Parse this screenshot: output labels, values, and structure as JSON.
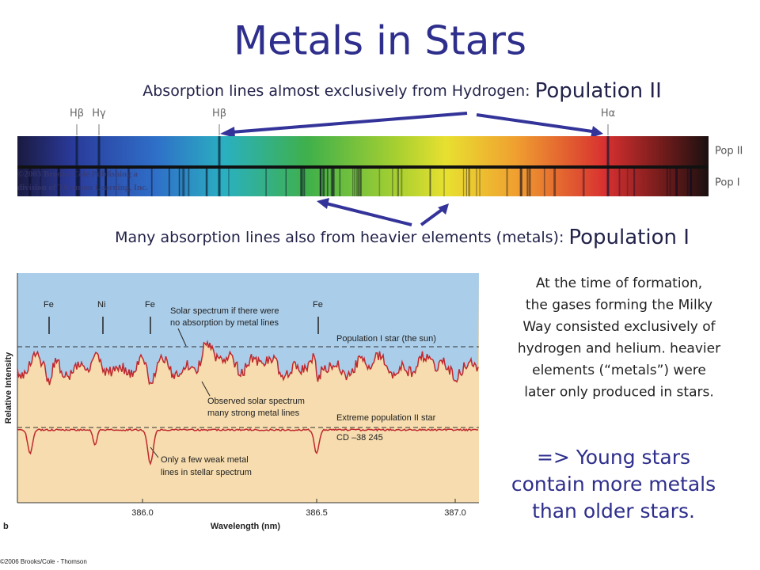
{
  "title": "Metals in Stars",
  "hydrogen_line": {
    "text": "Absorption lines almost exclusively from Hydrogen:",
    "emphasis": "Population II"
  },
  "spectrum": {
    "line_labels": [
      "Hβ",
      "Hγ",
      "Hβ",
      "Hα"
    ],
    "strip_labels": [
      "Pop II",
      "Pop I"
    ],
    "credit": [
      "©2003 Brooks/Cole Publishing a",
      "division of Thomson Learning, Inc."
    ]
  },
  "metals_line": {
    "text": "Many absorption lines also from heavier elements (metals):",
    "emphasis": "Population I"
  },
  "figure": {
    "element_labels": [
      "Fe",
      "Ni",
      "Fe",
      "Fe"
    ],
    "annotations": [
      [
        "Solar spectrum if there were",
        "no absorption by metal lines"
      ],
      [
        "Population I star (the sun)"
      ],
      [
        "Observed solar spectrum",
        "many strong metal lines"
      ],
      [
        "Extreme population II star"
      ],
      [
        "CD –38 245"
      ],
      [
        "Only a few weak metal",
        "lines in stellar spectrum"
      ]
    ],
    "y_axis_label": "Relative Intensity",
    "x_axis_label": "Wavelength (nm)",
    "x_tick_labels": [
      "386.0",
      "386.5",
      "387.0"
    ],
    "panel_label": "b",
    "credit": "©2006 Brooks/Cole - Thomson"
  },
  "explanation": [
    "At the time of formation,",
    "the gases forming the Milky",
    "Way consisted exclusively of",
    "hydrogen and helium. heavier",
    "elements (“metals”) were",
    "later only produced in stars."
  ],
  "conclusion": [
    "=> Young stars",
    "contain more metals",
    "than older stars."
  ]
}
